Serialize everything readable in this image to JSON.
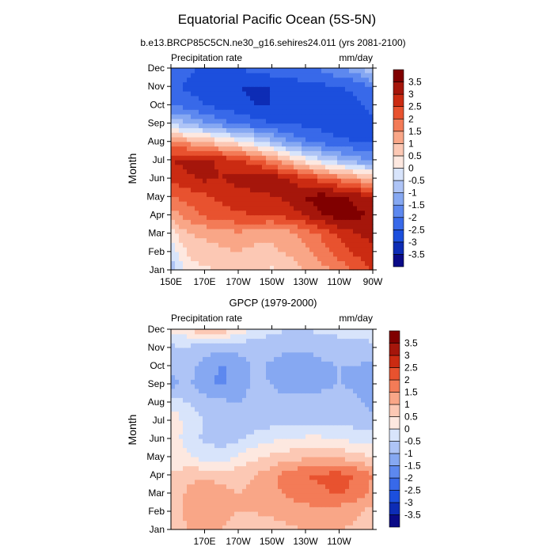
{
  "figure": {
    "title": "Equatorial Pacific Ocean (5S-5N)"
  },
  "chart_data": [
    {
      "type": "heatmap",
      "title": "b.e13.BRCP85C5CN.ne30_g16.sehires24.011 (yrs 2081-2100)",
      "left_label": "Precipitation rate",
      "right_label": "mm/day",
      "ylabel": "Month",
      "xlabel": "",
      "x_ticks": [
        150,
        170,
        190,
        210,
        230,
        250,
        270
      ],
      "x_tick_labels": [
        "150E",
        "170E",
        "170W",
        "150W",
        "130W",
        "110W",
        "90W"
      ],
      "xlim": [
        150,
        270
      ],
      "y_tick_labels": [
        "Jan",
        "Feb",
        "Mar",
        "Apr",
        "May",
        "Jun",
        "Jul",
        "Aug",
        "Sep",
        "Oct",
        "Nov",
        "Dec"
      ],
      "ylim": [
        1,
        12
      ],
      "colorbar_ticks": [
        "3.5",
        "3",
        "2.5",
        "2",
        "1.5",
        "1",
        "0.5",
        "0",
        "-0.5",
        "-1",
        "-1.5",
        "-2",
        "-2.5",
        "-3",
        "-3.5"
      ],
      "colorbar_levels": [
        -3.5,
        -3,
        -2.5,
        -2,
        -1.5,
        -1,
        -0.5,
        0,
        0.5,
        1,
        1.5,
        2,
        2.5,
        3,
        3.5
      ],
      "colors": [
        "#0a0a87",
        "#0d2cb5",
        "#1c4fdd",
        "#3869e9",
        "#5d88ef",
        "#86a8f2",
        "#aec4f6",
        "#d8e4fb",
        "#fde8e0",
        "#fcc8b4",
        "#f9a687",
        "#f37b57",
        "#e8522f",
        "#cb2b12",
        "#a5160b",
        "#800000"
      ],
      "z": [
        [
          -0.8,
          0.2,
          0.4,
          0.6,
          0.8,
          0.6,
          0.4,
          0.7,
          1.0,
          1.3,
          1.7,
          2.2,
          2.5
        ],
        [
          -0.4,
          0.6,
          0.8,
          0.9,
          1.0,
          0.8,
          0.9,
          1.1,
          1.3,
          1.8,
          2.2,
          2.6,
          2.8
        ],
        [
          0.3,
          1.0,
          1.1,
          1.2,
          1.4,
          1.3,
          1.1,
          1.3,
          1.7,
          2.1,
          2.6,
          3.0,
          3.2
        ],
        [
          1.2,
          1.7,
          2.1,
          2.3,
          2.4,
          2.5,
          2.5,
          2.7,
          3.0,
          3.5,
          3.7,
          3.6,
          3.5
        ],
        [
          2.0,
          2.2,
          2.4,
          2.6,
          2.8,
          2.8,
          3.0,
          3.1,
          3.6,
          3.7,
          3.6,
          3.4,
          3.0
        ],
        [
          2.6,
          2.9,
          3.1,
          3.0,
          3.2,
          3.4,
          3.3,
          3.0,
          2.6,
          2.2,
          1.8,
          1.4,
          1.0
        ],
        [
          3.0,
          3.2,
          3.1,
          2.9,
          2.6,
          2.2,
          1.6,
          0.9,
          0.2,
          -0.4,
          -0.9,
          -1.3,
          -1.6
        ],
        [
          1.5,
          1.3,
          1.0,
          0.6,
          0.2,
          -0.3,
          -0.9,
          -1.5,
          -1.9,
          -2.2,
          -2.4,
          -2.5,
          -2.6
        ],
        [
          -0.6,
          -1.0,
          -1.4,
          -1.8,
          -2.1,
          -2.3,
          -2.5,
          -2.6,
          -2.6,
          -2.7,
          -2.8,
          -2.7,
          -2.6
        ],
        [
          -2.0,
          -2.2,
          -2.5,
          -2.7,
          -2.8,
          -3.0,
          -3.0,
          -2.8,
          -2.6,
          -2.9,
          -2.7,
          -2.6,
          -2.4
        ],
        [
          -2.4,
          -2.6,
          -2.7,
          -2.8,
          -3.0,
          -3.1,
          -3.0,
          -2.9,
          -2.7,
          -2.6,
          -2.5,
          -2.4,
          -2.0
        ],
        [
          -2.2,
          -2.4,
          -2.6,
          -2.6,
          -2.5,
          -2.3,
          -2.2,
          -2.1,
          -2.0,
          -1.9,
          -1.6,
          -1.2,
          -0.5
        ]
      ]
    },
    {
      "type": "heatmap",
      "title": "GPCP (1979-2000)",
      "left_label": "Precipitation rate",
      "right_label": "mm/day",
      "ylabel": "Month",
      "xlabel": "",
      "x_ticks": [
        170,
        190,
        210,
        230,
        250
      ],
      "x_tick_labels": [
        "170E",
        "170W",
        "150W",
        "130W",
        "110W"
      ],
      "xlim": [
        150,
        270
      ],
      "y_tick_labels": [
        "Jan",
        "Feb",
        "Mar",
        "Apr",
        "May",
        "Jun",
        "Jul",
        "Aug",
        "Sep",
        "Oct",
        "Nov",
        "Dec"
      ],
      "ylim": [
        1,
        12
      ],
      "colorbar_ticks": [
        "3.5",
        "3",
        "2.5",
        "2",
        "1.5",
        "1",
        "0.5",
        "0",
        "-0.5",
        "-1",
        "-1.5",
        "-2",
        "-2.5",
        "-3",
        "-3.5"
      ],
      "colorbar_levels": [
        -3.5,
        -3,
        -2.5,
        -2,
        -1.5,
        -1,
        -0.5,
        0,
        0.5,
        1,
        1.5,
        2,
        2.5,
        3,
        3.5
      ],
      "colors": [
        "#0a0a87",
        "#0d2cb5",
        "#1c4fdd",
        "#3869e9",
        "#5d88ef",
        "#86a8f2",
        "#aec4f6",
        "#d8e4fb",
        "#fde8e0",
        "#fcc8b4",
        "#f9a687",
        "#f37b57",
        "#e8522f",
        "#cb2b12",
        "#a5160b",
        "#800000"
      ],
      "z": [
        [
          0.5,
          1.0,
          1.2,
          1.0,
          0.9,
          0.8,
          0.8,
          0.9,
          1.0,
          1.1,
          1.0,
          0.9,
          0.6
        ],
        [
          0.6,
          1.2,
          1.3,
          1.1,
          1.0,
          1.0,
          1.1,
          1.2,
          1.3,
          1.3,
          1.2,
          1.1,
          0.8
        ],
        [
          0.7,
          1.1,
          1.4,
          1.2,
          1.0,
          1.2,
          1.4,
          1.6,
          1.8,
          1.9,
          2.1,
          1.8,
          1.3
        ],
        [
          0.5,
          0.8,
          0.9,
          0.8,
          0.8,
          1.0,
          1.3,
          1.8,
          2.0,
          2.1,
          2.2,
          2.0,
          1.5
        ],
        [
          0.3,
          0.1,
          -0.2,
          -0.3,
          0.1,
          0.4,
          0.6,
          0.8,
          0.9,
          1.0,
          0.9,
          0.7,
          0.5
        ],
        [
          0.4,
          -0.3,
          -0.6,
          -0.7,
          -0.6,
          -0.3,
          -0.1,
          0.0,
          0.1,
          0.1,
          0.0,
          -0.2,
          -0.3
        ],
        [
          0.4,
          -0.2,
          -0.5,
          -0.7,
          -0.8,
          -0.8,
          -0.7,
          -0.7,
          -0.7,
          -0.7,
          -0.7,
          -0.7,
          -0.8
        ],
        [
          -0.2,
          -0.5,
          -0.8,
          -0.9,
          -1.0,
          -0.9,
          -0.8,
          -0.8,
          -0.8,
          -0.8,
          -0.8,
          -0.9,
          -1.2
        ],
        [
          -1.2,
          -0.9,
          -1.3,
          -1.6,
          -1.2,
          -0.9,
          -1.0,
          -1.3,
          -1.3,
          -1.1,
          -1.0,
          -1.1,
          -1.3
        ],
        [
          -0.8,
          -0.8,
          -1.2,
          -1.6,
          -1.2,
          -0.9,
          -1.1,
          -1.4,
          -1.3,
          -1.1,
          -1.0,
          -1.0,
          -1.1
        ],
        [
          -0.6,
          -0.6,
          -0.8,
          -0.9,
          -0.9,
          -0.8,
          -0.8,
          -0.9,
          -0.9,
          -0.8,
          -0.8,
          -0.8,
          -0.6
        ],
        [
          0.1,
          0.4,
          1.0,
          0.8,
          0.3,
          -0.2,
          -0.4,
          -0.5,
          -0.5,
          -0.4,
          -0.3,
          -0.3,
          -0.2
        ]
      ]
    }
  ]
}
